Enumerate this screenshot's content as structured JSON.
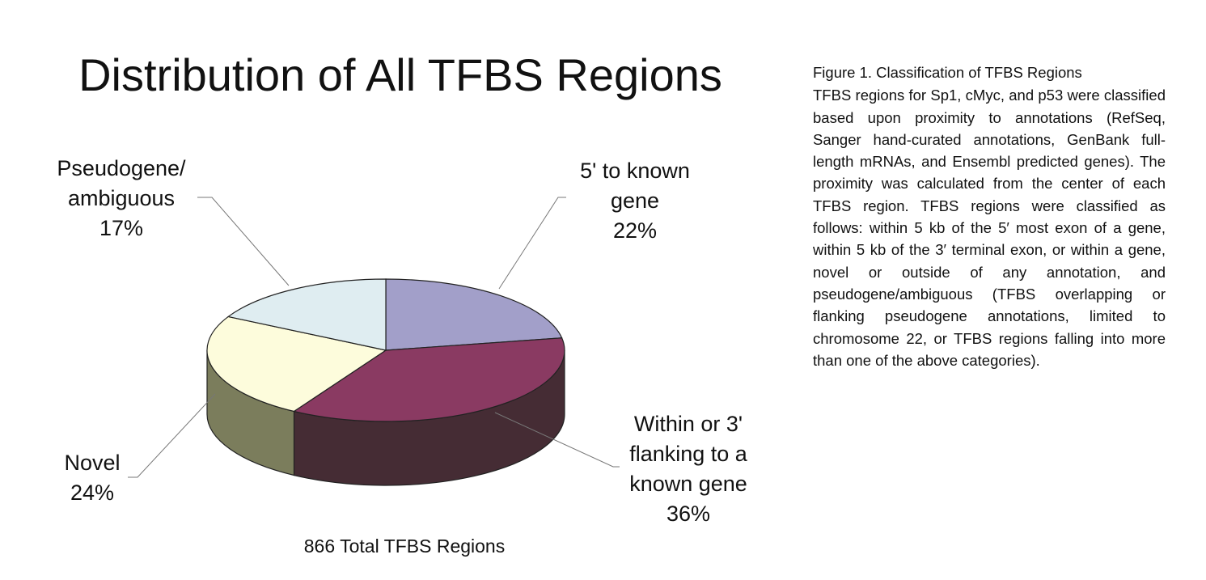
{
  "chart_data": {
    "type": "pie",
    "title": "Distribution of All TFBS Regions",
    "footer": "866 Total TFBS Regions",
    "slices": [
      {
        "label_lines": [
          "5' to known",
          "gene",
          "22%"
        ],
        "value": 22,
        "color": "#a29fc9",
        "side_color": "#5e5b85"
      },
      {
        "label_lines": [
          "Within or 3'",
          "flanking to a",
          "known gene",
          "36%"
        ],
        "value": 36,
        "color": "#8a3a62",
        "side_color": "#452c34"
      },
      {
        "label_lines": [
          "Novel",
          "24%"
        ],
        "value": 24,
        "color": "#fdfcdc",
        "side_color": "#7b7d5c"
      },
      {
        "label_lines": [
          "Pseudogene/",
          "ambiguous",
          "17%"
        ],
        "value": 17,
        "color": "#dfedf1",
        "side_color": "#8aa0a8"
      }
    ]
  },
  "caption": {
    "title": "Figure 1.  Classification of TFBS Regions",
    "body": "TFBS regions for Sp1, cMyc, and p53 were classified based upon proximity to annotations (RefSeq, Sanger hand-curated annotations, GenBank full-length mRNAs, and Ensembl predicted genes). The proximity was calculated from the center of each TFBS region. TFBS regions were classified as follows: within 5 kb of the 5′ most exon of a gene, within 5 kb of the 3′ terminal exon, or within a gene, novel or outside of any annotation, and pseudogene/ambiguous (TFBS overlapping or flanking pseudogene annotations, limited to chromosome 22, or TFBS regions falling into more than one of the above categories)."
  }
}
